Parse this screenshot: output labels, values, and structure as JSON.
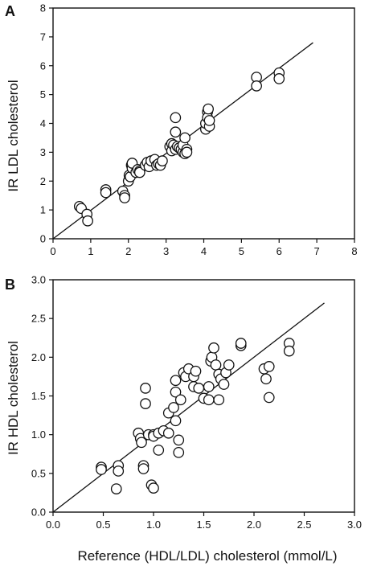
{
  "figure": {
    "xlabel": "Reference (HDL/LDL) cholesterol (mmol/L)"
  },
  "chart_data": [
    {
      "type": "scatter",
      "panel_label": "A",
      "ylabel": "IR LDL cholesterol",
      "xlim": [
        0,
        8
      ],
      "ylim": [
        0,
        8
      ],
      "xticks": [
        "0",
        "1",
        "2",
        "3",
        "4",
        "5",
        "6",
        "7",
        "8"
      ],
      "yticks": [
        "0",
        "1",
        "2",
        "3",
        "4",
        "5",
        "6",
        "7",
        "8"
      ],
      "line": {
        "x": [
          0,
          6.9
        ],
        "y": [
          0,
          6.8
        ]
      },
      "points": [
        [
          0.7,
          1.12
        ],
        [
          0.75,
          1.05
        ],
        [
          0.9,
          0.85
        ],
        [
          0.92,
          0.62
        ],
        [
          1.4,
          1.7
        ],
        [
          1.4,
          1.6
        ],
        [
          1.85,
          1.65
        ],
        [
          1.9,
          1.5
        ],
        [
          1.9,
          1.42
        ],
        [
          2.0,
          2.0
        ],
        [
          2.02,
          2.2
        ],
        [
          2.05,
          2.15
        ],
        [
          2.08,
          2.55
        ],
        [
          2.1,
          2.45
        ],
        [
          2.1,
          2.62
        ],
        [
          2.2,
          2.3
        ],
        [
          2.25,
          2.4
        ],
        [
          2.3,
          2.35
        ],
        [
          2.3,
          2.3
        ],
        [
          2.45,
          2.55
        ],
        [
          2.5,
          2.65
        ],
        [
          2.55,
          2.5
        ],
        [
          2.6,
          2.7
        ],
        [
          2.7,
          2.75
        ],
        [
          2.75,
          2.55
        ],
        [
          2.8,
          2.6
        ],
        [
          2.85,
          2.55
        ],
        [
          2.9,
          2.7
        ],
        [
          3.1,
          3.2
        ],
        [
          3.15,
          3.3
        ],
        [
          3.15,
          3.05
        ],
        [
          3.2,
          3.25
        ],
        [
          3.25,
          3.1
        ],
        [
          3.25,
          4.2
        ],
        [
          3.25,
          3.7
        ],
        [
          3.3,
          3.2
        ],
        [
          3.35,
          3.15
        ],
        [
          3.4,
          3.1
        ],
        [
          3.45,
          3.0
        ],
        [
          3.45,
          3.25
        ],
        [
          3.5,
          2.95
        ],
        [
          3.5,
          3.5
        ],
        [
          3.55,
          3.1
        ],
        [
          3.55,
          3.0
        ],
        [
          4.05,
          3.8
        ],
        [
          4.05,
          4.0
        ],
        [
          4.1,
          4.4
        ],
        [
          4.1,
          4.2
        ],
        [
          4.12,
          4.5
        ],
        [
          4.15,
          3.9
        ],
        [
          4.15,
          4.1
        ],
        [
          5.4,
          5.6
        ],
        [
          5.4,
          5.3
        ],
        [
          6.0,
          5.75
        ],
        [
          6.0,
          5.55
        ]
      ]
    },
    {
      "type": "scatter",
      "panel_label": "B",
      "ylabel": "IR HDL cholesterol",
      "xlim": [
        0,
        3
      ],
      "ylim": [
        0,
        3
      ],
      "xticks": [
        "0.0",
        "0.5",
        "1.0",
        "1.5",
        "2.0",
        "2.5",
        "3.0"
      ],
      "yticks": [
        "0.0",
        "0.5",
        "1.0",
        "1.5",
        "2.0",
        "2.5",
        "3.0"
      ],
      "line": {
        "x": [
          0,
          2.7
        ],
        "y": [
          0,
          2.7
        ]
      },
      "points": [
        [
          0.48,
          0.58
        ],
        [
          0.48,
          0.55
        ],
        [
          0.63,
          0.3
        ],
        [
          0.65,
          0.6
        ],
        [
          0.65,
          0.53
        ],
        [
          0.85,
          1.02
        ],
        [
          0.87,
          0.95
        ],
        [
          0.88,
          0.9
        ],
        [
          0.9,
          0.6
        ],
        [
          0.9,
          0.56
        ],
        [
          0.92,
          1.4
        ],
        [
          0.92,
          1.6
        ],
        [
          0.95,
          1.0
        ],
        [
          0.98,
          0.35
        ],
        [
          1.0,
          1.0
        ],
        [
          1.0,
          0.98
        ],
        [
          1.0,
          0.31
        ],
        [
          1.05,
          0.8
        ],
        [
          1.05,
          1.02
        ],
        [
          1.1,
          1.05
        ],
        [
          1.15,
          1.28
        ],
        [
          1.15,
          1.02
        ],
        [
          1.2,
          1.35
        ],
        [
          1.22,
          1.18
        ],
        [
          1.22,
          1.55
        ],
        [
          1.22,
          1.7
        ],
        [
          1.25,
          0.93
        ],
        [
          1.25,
          0.77
        ],
        [
          1.27,
          1.45
        ],
        [
          1.3,
          1.8
        ],
        [
          1.32,
          1.75
        ],
        [
          1.35,
          1.85
        ],
        [
          1.4,
          1.75
        ],
        [
          1.4,
          1.62
        ],
        [
          1.42,
          1.82
        ],
        [
          1.45,
          1.6
        ],
        [
          1.5,
          1.47
        ],
        [
          1.55,
          1.45
        ],
        [
          1.55,
          1.62
        ],
        [
          1.57,
          1.95
        ],
        [
          1.58,
          2.0
        ],
        [
          1.6,
          2.12
        ],
        [
          1.62,
          1.9
        ],
        [
          1.65,
          1.45
        ],
        [
          1.65,
          1.78
        ],
        [
          1.67,
          1.72
        ],
        [
          1.7,
          1.65
        ],
        [
          1.72,
          1.8
        ],
        [
          1.75,
          1.9
        ],
        [
          1.87,
          2.15
        ],
        [
          1.87,
          2.18
        ],
        [
          2.1,
          1.85
        ],
        [
          2.12,
          1.72
        ],
        [
          2.15,
          1.88
        ],
        [
          2.15,
          1.48
        ],
        [
          2.35,
          2.18
        ],
        [
          2.35,
          2.08
        ]
      ]
    }
  ]
}
